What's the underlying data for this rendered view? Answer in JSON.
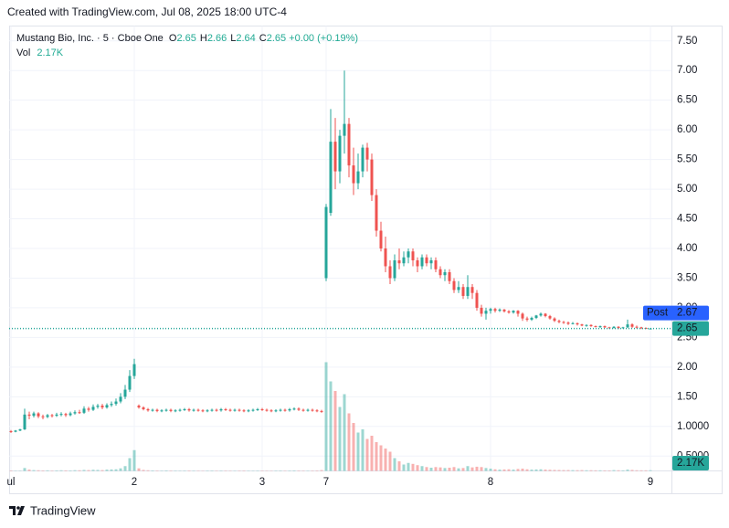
{
  "chart_data": {
    "type": "candlestick",
    "title": "Created with TradingView.com, Jul 08, 2025 18:00 UTC-4",
    "symbol": "Mustang Bio, Inc. · 5 · Cboe One",
    "ohlc_legend": [
      {
        "key": "O",
        "value": 2.65
      },
      {
        "key": "H",
        "value": 2.66
      },
      {
        "key": "L",
        "value": 2.64
      },
      {
        "key": "C",
        "value": 2.65
      }
    ],
    "change": "+0.00 (+0.19%)",
    "volume_key": "Vol",
    "volume_label": "2.17K",
    "post_label": "Post",
    "post_price": 2.67,
    "last_price": 2.65,
    "footer": "TradingView",
    "up_color": "#26a69a",
    "down_color": "#ef5350",
    "post_color": "#2962ff",
    "ylim": [
      0.25,
      7.75
    ],
    "yticks": [
      {
        "value": 7.5,
        "label": "7.50"
      },
      {
        "value": 7,
        "label": "7.00"
      },
      {
        "value": 6.5,
        "label": "6.50"
      },
      {
        "value": 6,
        "label": "6.00"
      },
      {
        "value": 5.5,
        "label": "5.50"
      },
      {
        "value": 5,
        "label": "5.00"
      },
      {
        "value": 4.5,
        "label": "4.50"
      },
      {
        "value": 4,
        "label": "4.00"
      },
      {
        "value": 3.5,
        "label": "3.50"
      },
      {
        "value": 3,
        "label": "3.00"
      },
      {
        "value": 2.5,
        "label": "2.50"
      },
      {
        "value": 2,
        "label": "2.00"
      },
      {
        "value": 1.5,
        "label": "1.50"
      },
      {
        "value": 1,
        "label": "1.0000"
      },
      {
        "value": 0.5,
        "label": "0.5000"
      }
    ],
    "volume_lim": [
      0,
      400000
    ],
    "grid": true,
    "categories": [
      "ul",
      null,
      null,
      null,
      null,
      null,
      null,
      null,
      null,
      null,
      null,
      null,
      null,
      null,
      null,
      null,
      null,
      null,
      null,
      null,
      null,
      null,
      null,
      null,
      null,
      null,
      null,
      "2",
      null,
      null,
      null,
      null,
      null,
      null,
      null,
      null,
      null,
      null,
      null,
      null,
      null,
      null,
      null,
      null,
      null,
      null,
      null,
      null,
      null,
      null,
      null,
      null,
      null,
      null,
      null,
      "3",
      null,
      null,
      null,
      null,
      null,
      null,
      null,
      null,
      null,
      null,
      null,
      null,
      null,
      "7",
      null,
      null,
      null,
      null,
      null,
      null,
      null,
      null,
      null,
      null,
      null,
      null,
      null,
      null,
      null,
      null,
      null,
      null,
      null,
      null,
      null,
      null,
      null,
      null,
      null,
      null,
      null,
      null,
      null,
      null,
      null,
      null,
      null,
      null,
      null,
      "8",
      null,
      null,
      null,
      null,
      null,
      null,
      null,
      null,
      null,
      null,
      null,
      null,
      null,
      null,
      null,
      null,
      null,
      null,
      null,
      null,
      null,
      null,
      null,
      null,
      null,
      null,
      null,
      null,
      null,
      null,
      null,
      null,
      null,
      null,
      "9"
    ],
    "open": [
      0.92,
      0.91,
      0.93,
      0.95,
      1.2,
      1.18,
      1.22,
      1.17,
      1.16,
      1.19,
      1.18,
      1.2,
      1.21,
      1.19,
      1.22,
      1.24,
      1.23,
      1.3,
      1.28,
      1.33,
      1.35,
      1.32,
      1.36,
      1.38,
      1.42,
      1.5,
      1.62,
      1.85,
      1.35,
      1.32,
      1.29,
      1.27,
      1.28,
      1.26,
      1.27,
      1.28,
      1.26,
      1.27,
      1.28,
      1.29,
      1.27,
      1.28,
      1.27,
      1.26,
      1.27,
      1.28,
      1.27,
      1.29,
      1.28,
      1.27,
      1.28,
      1.27,
      1.26,
      1.27,
      1.28,
      1.29,
      1.28,
      1.27,
      1.26,
      1.27,
      1.28,
      1.27,
      1.29,
      1.3,
      1.28,
      1.27,
      1.28,
      1.27,
      1.26,
      3.5,
      4.6,
      5.8,
      5.3,
      5.9,
      6.1,
      5.4,
      5.1,
      5.3,
      5.7,
      5.5,
      4.9,
      4.3,
      4.0,
      3.7,
      3.5,
      3.8,
      3.75,
      3.85,
      3.95,
      3.8,
      3.7,
      3.85,
      3.75,
      3.8,
      3.65,
      3.55,
      3.6,
      3.45,
      3.3,
      3.35,
      3.2,
      3.35,
      3.25,
      3.0,
      2.9,
      2.95,
      2.98,
      2.95,
      2.97,
      2.94,
      2.92,
      2.95,
      2.9,
      2.82,
      2.8,
      2.83,
      2.87,
      2.9,
      2.86,
      2.82,
      2.78,
      2.76,
      2.75,
      2.73,
      2.74,
      2.72,
      2.7,
      2.71,
      2.69,
      2.68,
      2.69,
      2.67,
      2.66,
      2.68,
      2.66,
      2.67,
      2.72,
      2.68,
      2.67,
      2.66,
      2.65
    ],
    "high": [
      0.94,
      0.94,
      0.96,
      1.3,
      1.25,
      1.25,
      1.24,
      1.2,
      1.21,
      1.21,
      1.23,
      1.24,
      1.23,
      1.25,
      1.27,
      1.28,
      1.34,
      1.33,
      1.37,
      1.38,
      1.38,
      1.39,
      1.42,
      1.47,
      1.56,
      1.7,
      1.95,
      2.14,
      1.37,
      1.34,
      1.31,
      1.3,
      1.3,
      1.29,
      1.3,
      1.3,
      1.29,
      1.3,
      1.31,
      1.31,
      1.3,
      1.3,
      1.29,
      1.29,
      1.3,
      1.3,
      1.31,
      1.31,
      1.3,
      1.3,
      1.3,
      1.29,
      1.29,
      1.3,
      1.31,
      1.31,
      1.3,
      1.29,
      1.29,
      1.3,
      1.3,
      1.31,
      1.32,
      1.32,
      1.3,
      1.3,
      1.3,
      1.29,
      1.28,
      4.75,
      6.35,
      6.2,
      6.0,
      7.0,
      6.2,
      5.7,
      5.6,
      5.75,
      5.78,
      5.6,
      5.0,
      4.45,
      4.2,
      3.8,
      3.9,
      4.0,
      3.95,
      4.0,
      4.0,
      3.85,
      3.9,
      3.9,
      3.85,
      3.85,
      3.7,
      3.65,
      3.65,
      3.5,
      3.45,
      3.4,
      3.55,
      3.4,
      3.3,
      3.05,
      3.0,
      3.0,
      3.0,
      2.99,
      2.98,
      2.96,
      2.96,
      2.96,
      2.92,
      2.85,
      2.85,
      2.88,
      2.92,
      2.91,
      2.88,
      2.84,
      2.8,
      2.78,
      2.77,
      2.76,
      2.75,
      2.73,
      2.72,
      2.72,
      2.7,
      2.7,
      2.7,
      2.68,
      2.69,
      2.69,
      2.68,
      2.8,
      2.74,
      2.7,
      2.68,
      2.67,
      2.66
    ],
    "low": [
      0.89,
      0.9,
      0.92,
      0.94,
      1.12,
      1.15,
      1.14,
      1.12,
      1.14,
      1.15,
      1.16,
      1.17,
      1.16,
      1.17,
      1.2,
      1.21,
      1.21,
      1.25,
      1.26,
      1.3,
      1.29,
      1.3,
      1.33,
      1.35,
      1.39,
      1.46,
      1.58,
      1.8,
      1.3,
      1.27,
      1.25,
      1.25,
      1.24,
      1.24,
      1.25,
      1.24,
      1.24,
      1.25,
      1.26,
      1.25,
      1.25,
      1.25,
      1.24,
      1.24,
      1.25,
      1.25,
      1.25,
      1.26,
      1.25,
      1.25,
      1.25,
      1.24,
      1.24,
      1.25,
      1.26,
      1.26,
      1.25,
      1.24,
      1.24,
      1.25,
      1.25,
      1.25,
      1.27,
      1.26,
      1.25,
      1.25,
      1.25,
      1.24,
      1.23,
      3.45,
      4.55,
      5.0,
      5.1,
      5.6,
      5.2,
      4.9,
      5.0,
      5.2,
      5.3,
      4.8,
      4.2,
      3.95,
      3.6,
      3.4,
      3.45,
      3.65,
      3.7,
      3.75,
      3.7,
      3.6,
      3.65,
      3.7,
      3.65,
      3.6,
      3.5,
      3.45,
      3.4,
      3.25,
      3.25,
      3.15,
      3.15,
      3.15,
      2.95,
      2.85,
      2.8,
      2.9,
      2.92,
      2.93,
      2.92,
      2.9,
      2.9,
      2.85,
      2.78,
      2.77,
      2.78,
      2.81,
      2.85,
      2.84,
      2.8,
      2.76,
      2.74,
      2.73,
      2.71,
      2.72,
      2.7,
      2.69,
      2.68,
      2.68,
      2.67,
      2.66,
      2.66,
      2.65,
      2.65,
      2.64,
      2.65,
      2.66,
      2.66,
      2.65,
      2.64,
      2.64,
      2.64
    ],
    "close": [
      0.91,
      0.93,
      0.95,
      1.2,
      1.18,
      1.22,
      1.17,
      1.16,
      1.19,
      1.18,
      1.2,
      1.21,
      1.19,
      1.22,
      1.24,
      1.23,
      1.3,
      1.28,
      1.33,
      1.35,
      1.32,
      1.36,
      1.38,
      1.42,
      1.5,
      1.62,
      1.85,
      2.05,
      1.32,
      1.29,
      1.27,
      1.28,
      1.26,
      1.27,
      1.28,
      1.26,
      1.27,
      1.28,
      1.29,
      1.27,
      1.28,
      1.27,
      1.26,
      1.27,
      1.28,
      1.27,
      1.29,
      1.28,
      1.27,
      1.28,
      1.27,
      1.26,
      1.27,
      1.28,
      1.29,
      1.28,
      1.27,
      1.26,
      1.27,
      1.28,
      1.27,
      1.29,
      1.3,
      1.28,
      1.27,
      1.28,
      1.27,
      1.26,
      1.25,
      4.7,
      5.8,
      5.3,
      5.9,
      6.1,
      5.4,
      5.1,
      5.3,
      5.7,
      5.5,
      4.9,
      4.3,
      4.0,
      3.7,
      3.5,
      3.8,
      3.75,
      3.85,
      3.95,
      3.8,
      3.7,
      3.85,
      3.75,
      3.8,
      3.65,
      3.55,
      3.6,
      3.45,
      3.3,
      3.35,
      3.2,
      3.35,
      3.25,
      3.0,
      2.9,
      2.95,
      2.98,
      2.95,
      2.97,
      2.94,
      2.92,
      2.95,
      2.9,
      2.82,
      2.8,
      2.83,
      2.87,
      2.9,
      2.86,
      2.82,
      2.78,
      2.76,
      2.75,
      2.73,
      2.74,
      2.72,
      2.7,
      2.71,
      2.69,
      2.68,
      2.69,
      2.67,
      2.66,
      2.68,
      2.66,
      2.67,
      2.72,
      2.68,
      2.67,
      2.66,
      2.65,
      2.65
    ],
    "volume": [
      1500,
      800,
      900,
      9000,
      4000,
      2500,
      2000,
      1500,
      1800,
      1200,
      1500,
      2000,
      1700,
      1400,
      2200,
      2000,
      3000,
      2500,
      3500,
      3000,
      2500,
      4000,
      4500,
      5000,
      8000,
      15000,
      40000,
      65000,
      8000,
      3000,
      2000,
      1500,
      1200,
      1000,
      1500,
      1200,
      1000,
      900,
      1100,
      1300,
      1000,
      900,
      800,
      1000,
      1200,
      900,
      1100,
      1000,
      900,
      800,
      1000,
      1200,
      900,
      800,
      1000,
      1100,
      900,
      800,
      1000,
      1200,
      900,
      1100,
      1500,
      1200,
      1000,
      900,
      1100,
      1300,
      2500,
      340000,
      280000,
      250000,
      200000,
      240000,
      180000,
      150000,
      120000,
      130000,
      100000,
      110000,
      90000,
      80000,
      70000,
      60000,
      40000,
      30000,
      20000,
      25000,
      22000,
      18000,
      15000,
      12000,
      10000,
      12000,
      11000,
      9000,
      10000,
      12000,
      8000,
      9000,
      15000,
      11000,
      13000,
      12000,
      9000,
      7000,
      5000,
      4000,
      4500,
      5000,
      4000,
      6000,
      7000,
      5000,
      4000,
      4500,
      5000,
      4000,
      3500,
      3000,
      2800,
      2500,
      2600,
      2400,
      2200,
      2500,
      2000,
      2100,
      1800,
      1900,
      1700,
      1600,
      2500,
      2000,
      1800,
      4000,
      3000,
      2000,
      1900,
      1800,
      2170
    ]
  }
}
